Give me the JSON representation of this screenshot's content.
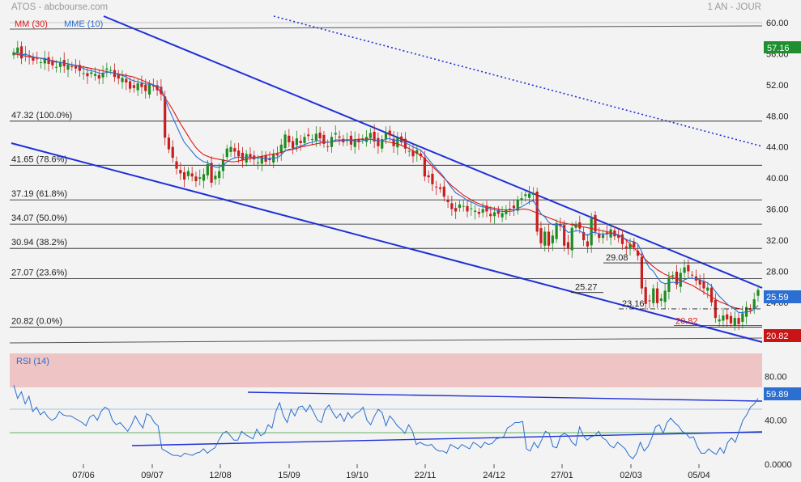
{
  "header": {
    "title": "ATOS - abcbourse.com",
    "period": "1 AN - JOUR"
  },
  "legend": {
    "ma30": "MM (30)",
    "ema10": "MME (10)",
    "rsi": "RSI (14)"
  },
  "colors": {
    "up": "#1e8c1e",
    "down": "#c81e1e",
    "ma30": "#e01818",
    "ema10": "#2a6fd0",
    "trend": "#1f2fd8",
    "rsi_band": "#efc4c4",
    "price_badge": "#1f8f2f",
    "last_badge": "#2c6fd0",
    "low_badge": "#c81414"
  },
  "badges": {
    "top": "57.16",
    "last": "25.59",
    "low": "20.82",
    "rsi": "59.89"
  },
  "annotations": {
    "p2908": "29.08",
    "p2527": "25.27",
    "p2316": "23.16",
    "p2082": "20.82"
  },
  "chart_data": [
    {
      "type": "candlestick",
      "title": "ATOS - abcbourse.com",
      "subtitle": "1 AN - JOUR",
      "ylim": [
        18.5,
        61
      ],
      "y_ticks": [
        "60.00",
        "56.00",
        "52.00",
        "48.00",
        "44.00",
        "40.00",
        "36.00",
        "32.00",
        "28.00",
        "24.00"
      ],
      "x_ticks": [
        "07/06",
        "09/07",
        "12/08",
        "15/09",
        "19/10",
        "22/11",
        "24/12",
        "27/01",
        "02/03",
        "05/04"
      ],
      "fibonacci": [
        {
          "label": "47.32  (100.0%)",
          "value": 47.32
        },
        {
          "label": "41.65  (78.6%)",
          "value": 41.65
        },
        {
          "label": "37.19  (61.8%)",
          "value": 37.19
        },
        {
          "label": "34.07  (50.0%)",
          "value": 34.07
        },
        {
          "label": "30.94  (38.2%)",
          "value": 30.94
        },
        {
          "label": "27.07  (23.6%)",
          "value": 27.07
        },
        {
          "label": "20.82  (0.0%)",
          "value": 20.82
        }
      ],
      "close": [
        56.2,
        56.8,
        55.4,
        56.0,
        55.6,
        55.1,
        55.3,
        54.9,
        55.4,
        54.7,
        54.5,
        54.3,
        54.9,
        54.4,
        54.6,
        54.3,
        54.1,
        53.8,
        53.5,
        53.1,
        53.6,
        53.4,
        52.8,
        53.5,
        54.1,
        53.9,
        53.0,
        52.8,
        52.9,
        52.3,
        51.5,
        51.6,
        52.2,
        51.7,
        51.2,
        52.1,
        51.8,
        51.3,
        50.8,
        45.2,
        43.7,
        42.6,
        41.2,
        40.6,
        39.8,
        40.9,
        40.2,
        39.6,
        40.1,
        40.5,
        41.8,
        39.4,
        40.3,
        40.9,
        42.4,
        43.8,
        44.0,
        43.4,
        42.8,
        42.3,
        43.1,
        42.6,
        42.4,
        42.0,
        42.8,
        42.1,
        42.3,
        43.1,
        42.9,
        44.3,
        45.6,
        44.6,
        43.8,
        45.1,
        44.5,
        45.3,
        45.4,
        45.0,
        45.7,
        45.1,
        44.4,
        44.0,
        45.3,
        45.8,
        45.2,
        44.6,
        45.0,
        44.3,
        45.0,
        44.6,
        45.1,
        45.3,
        45.8,
        44.7,
        44.1,
        45.0,
        45.8,
        45.5,
        44.1,
        45.2,
        44.6,
        43.8,
        43.5,
        42.8,
        43.6,
        42.8,
        40.2,
        40.1,
        39.2,
        38.8,
        38.6,
        37.6,
        36.9,
        36.0,
        35.7,
        36.6,
        36.4,
        35.7,
        36.1,
        35.8,
        35.4,
        36.0,
        35.7,
        35.1,
        35.6,
        35.4,
        35.5,
        35.9,
        36.0,
        36.1,
        37.2,
        37.4,
        37.9,
        38.0,
        38.1,
        33.1,
        31.6,
        33.1,
        31.3,
        32.6,
        34.2,
        33.8,
        31.3,
        31.0,
        33.6,
        34.0,
        33.5,
        32.0,
        31.2,
        34.8,
        33.1,
        32.3,
        32.7,
        32.8,
        33.4,
        32.5,
        32.3,
        31.5,
        31.0,
        31.5,
        31.1,
        30.0,
        25.8,
        23.8,
        24.2,
        25.8,
        23.9,
        24.5,
        25.5,
        27.2,
        27.5,
        26.3,
        27.8,
        28.5,
        28.0,
        27.5,
        26.8,
        26.3,
        25.8,
        25.9,
        24.0,
        22.0,
        21.8,
        22.3,
        21.8,
        21.3,
        22.0,
        21.2,
        22.6,
        23.4,
        23.0,
        24.4,
        25.6
      ],
      "series": [
        {
          "name": "MM (30)",
          "values": [
            56.0,
            55.9,
            55.8,
            55.7,
            55.6,
            55.5,
            55.5,
            55.4,
            55.3,
            55.2,
            55.1,
            55.0,
            54.9,
            54.8,
            54.7,
            54.6,
            54.5,
            54.4,
            54.3,
            54.2,
            54.1,
            54.0,
            53.9,
            53.8,
            53.7,
            53.6,
            53.5,
            53.4,
            53.3,
            53.2,
            53.1,
            53.0,
            52.8,
            52.6,
            52.4,
            52.2,
            52.0,
            51.6,
            51.0,
            50.3,
            49.6,
            48.8,
            47.9,
            47.0,
            46.2,
            45.4,
            44.6,
            43.9,
            43.4,
            43.0,
            42.8,
            42.6,
            42.5,
            42.4,
            42.3,
            42.2,
            42.1,
            42.1,
            42.2,
            42.3,
            42.4,
            42.5,
            42.6,
            42.7,
            42.8,
            42.9,
            43.0,
            43.1,
            43.2,
            43.3,
            43.5,
            43.6,
            43.7,
            43.8,
            44.0,
            44.1,
            44.2,
            44.3,
            44.4,
            44.5,
            44.6,
            44.6,
            44.7,
            44.7,
            44.8,
            44.8,
            44.9,
            44.9,
            44.9,
            45.0,
            45.0,
            45.0,
            45.0,
            44.9,
            44.8,
            44.8,
            44.7,
            44.6,
            44.5,
            44.4,
            44.2,
            44.0,
            43.8,
            43.5,
            43.2,
            42.9,
            42.5,
            42.0,
            41.5,
            41.0,
            40.5,
            40.0,
            39.5,
            39.0,
            38.6,
            38.2,
            37.8,
            37.5,
            37.2,
            36.9,
            36.7,
            36.5,
            36.3,
            36.2,
            36.1,
            36.0,
            35.9,
            35.9,
            35.9,
            35.9,
            35.9,
            36.0,
            36.0,
            35.9,
            35.7,
            35.5,
            35.3,
            35.1,
            34.9,
            34.7,
            34.5,
            34.3,
            34.2,
            34.1,
            34.0,
            33.9,
            33.8,
            33.7,
            33.6,
            33.5,
            33.4,
            33.3,
            33.2,
            33.1,
            33.0,
            32.8,
            32.6,
            32.4,
            32.0,
            31.5,
            31.0,
            30.5,
            30.0,
            29.5,
            29.0,
            28.6,
            28.2,
            27.9,
            27.6,
            27.4,
            27.2,
            27.0,
            26.8,
            26.6,
            26.4,
            26.2,
            25.9,
            25.6,
            25.3,
            25.0,
            24.7,
            24.4,
            24.1,
            23.9,
            23.7,
            23.5,
            23.3,
            23.2,
            23.1
          ]
        },
        {
          "name": "MME (10)",
          "values": [
            56.0,
            56.1,
            55.9,
            55.9,
            55.8,
            55.6,
            55.5,
            55.4,
            55.4,
            55.2,
            55.0,
            54.9,
            54.9,
            54.8,
            54.7,
            54.6,
            54.5,
            54.3,
            54.1,
            53.9,
            53.8,
            53.7,
            53.5,
            53.5,
            53.6,
            53.6,
            53.5,
            53.3,
            53.2,
            53.0,
            52.7,
            52.5,
            52.4,
            52.3,
            52.1,
            52.1,
            52.0,
            51.8,
            51.6,
            50.2,
            48.9,
            47.8,
            46.7,
            45.6,
            44.6,
            44.0,
            43.4,
            42.8,
            42.4,
            42.1,
            42.0,
            41.6,
            41.4,
            41.4,
            41.6,
            42.1,
            42.4,
            42.6,
            42.7,
            42.6,
            42.7,
            42.7,
            42.6,
            42.6,
            42.6,
            42.5,
            42.5,
            42.6,
            42.6,
            43.0,
            43.5,
            43.7,
            43.7,
            44.0,
            44.1,
            44.3,
            44.5,
            44.6,
            44.8,
            44.8,
            44.7,
            44.6,
            44.7,
            44.9,
            44.9,
            44.9,
            44.9,
            44.8,
            44.8,
            44.7,
            44.8,
            44.9,
            45.0,
            44.9,
            44.8,
            44.8,
            45.0,
            45.1,
            44.8,
            44.9,
            44.8,
            44.5,
            44.3,
            44.0,
            43.8,
            43.6,
            43.0,
            42.4,
            41.8,
            41.2,
            40.7,
            40.1,
            39.4,
            38.7,
            38.1,
            37.8,
            37.5,
            37.1,
            36.9,
            36.7,
            36.4,
            36.3,
            36.2,
            36.0,
            35.9,
            35.8,
            35.7,
            35.7,
            35.7,
            35.8,
            36.1,
            36.3,
            36.6,
            36.9,
            37.1,
            36.3,
            35.4,
            35.0,
            34.3,
            34.0,
            34.0,
            34.0,
            33.5,
            33.0,
            33.1,
            33.2,
            33.2,
            32.9,
            32.6,
            33.0,
            33.0,
            32.8,
            32.8,
            32.8,
            32.9,
            32.8,
            32.7,
            32.4,
            32.1,
            31.9,
            31.8,
            31.5,
            30.5,
            29.3,
            28.4,
            28.0,
            27.2,
            26.6,
            26.4,
            26.5,
            26.6,
            26.5,
            26.6,
            26.9,
            27.1,
            27.1,
            27.0,
            26.9,
            26.7,
            26.5,
            26.1,
            25.4,
            24.8,
            24.3,
            23.8,
            23.4,
            23.1,
            22.7,
            22.7,
            22.8,
            22.8,
            23.1,
            23.6
          ]
        }
      ]
    },
    {
      "type": "line",
      "title": "RSI (14)",
      "ylim": [
        0,
        100
      ],
      "y_ticks": [
        "80.00",
        "40.00",
        "0.0000"
      ],
      "overbought": 70,
      "last": 59.89,
      "series": [
        {
          "name": "RSI (14)",
          "values": [
            72,
            60,
            66,
            55,
            62,
            48,
            52,
            45,
            48,
            43,
            40,
            42,
            48,
            45,
            44,
            44,
            42,
            40,
            38,
            35,
            43,
            45,
            40,
            48,
            52,
            50,
            40,
            36,
            38,
            34,
            30,
            36,
            44,
            38,
            33,
            46,
            44,
            38,
            35,
            14,
            12,
            10,
            8,
            8,
            7,
            10,
            9,
            8,
            10,
            11,
            14,
            10,
            13,
            15,
            22,
            28,
            30,
            26,
            22,
            22,
            30,
            27,
            25,
            23,
            32,
            26,
            28,
            36,
            33,
            48,
            56,
            44,
            38,
            50,
            44,
            52,
            53,
            48,
            54,
            47,
            40,
            38,
            50,
            54,
            47,
            42,
            46,
            39,
            47,
            42,
            46,
            48,
            52,
            40,
            36,
            44,
            50,
            47,
            35,
            44,
            40,
            35,
            32,
            28,
            36,
            30,
            18,
            20,
            18,
            17,
            18,
            14,
            12,
            12,
            10,
            18,
            16,
            14,
            18,
            16,
            14,
            20,
            18,
            15,
            20,
            18,
            19,
            23,
            24,
            25,
            33,
            35,
            38,
            38,
            39,
            14,
            12,
            20,
            15,
            22,
            30,
            28,
            16,
            15,
            26,
            28,
            26,
            20,
            17,
            34,
            26,
            22,
            25,
            26,
            30,
            24,
            22,
            17,
            15,
            20,
            17,
            14,
            8,
            5,
            10,
            20,
            12,
            16,
            24,
            34,
            36,
            28,
            38,
            42,
            38,
            35,
            30,
            28,
            24,
            25,
            16,
            10,
            10,
            14,
            11,
            9,
            15,
            10,
            20,
            24,
            20,
            30,
            40,
            45,
            52,
            55,
            60
          ]
        }
      ],
      "trend_lines": [
        "upper",
        "lower"
      ]
    }
  ]
}
